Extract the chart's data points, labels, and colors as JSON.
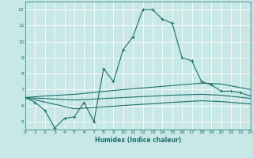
{
  "background_color": "#c8e8e8",
  "grid_color": "#ffffff",
  "line_color": "#1a7068",
  "xlabel": "Humidex (Indice chaleur)",
  "ylim": [
    4.5,
    12.5
  ],
  "xlim": [
    0,
    23
  ],
  "yticks": [
    5,
    6,
    7,
    8,
    9,
    10,
    11,
    12
  ],
  "xticks": [
    0,
    1,
    2,
    3,
    4,
    5,
    6,
    7,
    8,
    9,
    10,
    11,
    12,
    13,
    14,
    15,
    16,
    17,
    18,
    19,
    20,
    21,
    22,
    23
  ],
  "line1_x": [
    0,
    1,
    2,
    3,
    4,
    5,
    6,
    7,
    8,
    9,
    10,
    11,
    12,
    13,
    14,
    15,
    16,
    17,
    18,
    19,
    20,
    21,
    22,
    23
  ],
  "line1_y": [
    6.5,
    6.2,
    5.7,
    4.6,
    5.2,
    5.3,
    6.2,
    5.0,
    8.3,
    7.5,
    9.5,
    10.3,
    12.0,
    12.0,
    11.4,
    11.15,
    9.0,
    8.8,
    7.5,
    7.3,
    6.9,
    6.9,
    6.8,
    6.6
  ],
  "line2_x": [
    0,
    2,
    5,
    10,
    15,
    18,
    20,
    23
  ],
  "line2_y": [
    6.5,
    6.6,
    6.7,
    7.0,
    7.25,
    7.4,
    7.35,
    7.0
  ],
  "line3_x": [
    0,
    5,
    10,
    15,
    18,
    20,
    23
  ],
  "line3_y": [
    6.5,
    6.35,
    6.5,
    6.65,
    6.7,
    6.65,
    6.45
  ],
  "line4_x": [
    0,
    5,
    10,
    15,
    18,
    20,
    23
  ],
  "line4_y": [
    6.5,
    5.8,
    6.0,
    6.2,
    6.3,
    6.25,
    6.1
  ]
}
